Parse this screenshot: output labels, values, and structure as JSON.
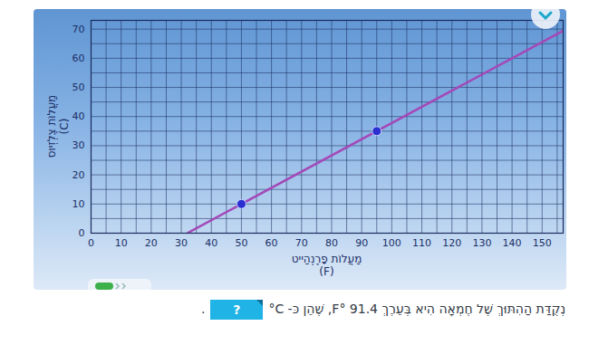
{
  "chart_data": {
    "type": "line",
    "x_label": [
      "מַעֲלוֹת פָרֶנְהַייט",
      "(F)"
    ],
    "y_label": [
      "מַעֲלוֹת צֶלְזְיוּס",
      "(C)"
    ],
    "xlim": [
      0,
      157
    ],
    "xticks": [
      0,
      10,
      20,
      30,
      40,
      50,
      60,
      70,
      80,
      90,
      100,
      110,
      120,
      130,
      140,
      150
    ],
    "ylim": [
      0,
      73
    ],
    "yticks": [
      0,
      10,
      20,
      30,
      40,
      50,
      60,
      70
    ],
    "grid": true,
    "series": [
      {
        "type": "line",
        "color": "#a349b8",
        "x": [
          32,
          158
        ],
        "values": [
          0,
          70
        ]
      },
      {
        "type": "scatter",
        "color": "#2b2fd0",
        "marker": "circle",
        "x": [
          50,
          95
        ],
        "values": [
          10,
          35
        ]
      }
    ]
  },
  "question": {
    "text": "נְקֻדַּת הַהִתּוּךְ שֶׁל חֶמְאָה הִיא בְּעֵרֶךְ 91.4 °F, שֶׁהֵן כּ-",
    "unit": "°C",
    "answer_box": "?",
    "end": "."
  }
}
